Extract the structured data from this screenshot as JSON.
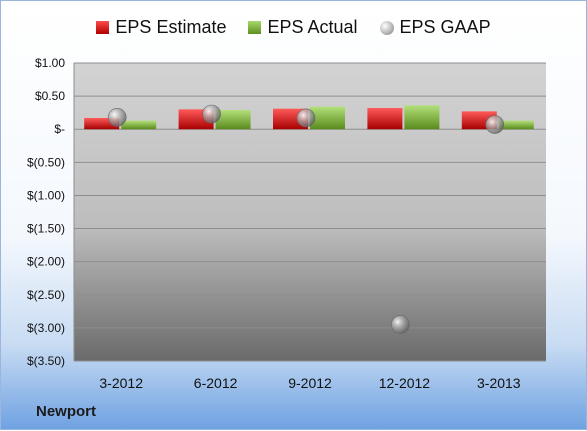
{
  "chart_data": {
    "type": "bar",
    "categories": [
      "3-2012",
      "6-2012",
      "9-2012",
      "12-2012",
      "3-2013"
    ],
    "series": [
      {
        "name": "EPS Estimate",
        "type": "bar",
        "color": "#d42020",
        "values": [
          0.17,
          0.3,
          0.31,
          0.32,
          0.27
        ]
      },
      {
        "name": "EPS Actual",
        "type": "bar",
        "color": "#7fb23a",
        "values": [
          0.13,
          0.29,
          0.34,
          0.36,
          0.13
        ]
      },
      {
        "name": "EPS GAAP",
        "type": "scatter",
        "color": "#a0a0a0",
        "values": [
          0.18,
          0.23,
          0.17,
          -2.95,
          0.07
        ]
      }
    ],
    "ylim": [
      -3.5,
      1.0
    ],
    "yticks": [
      1.0,
      0.5,
      0.0,
      -0.5,
      -1.0,
      -1.5,
      -2.0,
      -2.5,
      -3.0,
      -3.5
    ],
    "ytick_labels": [
      "$1.00",
      "$0.50",
      "$-",
      "$(0.50)",
      "$(1.00)",
      "$(1.50)",
      "$(2.00)",
      "$(2.50)",
      "$(3.00)",
      "$(3.50)"
    ],
    "grid": true,
    "legend_position": "top"
  },
  "legend": {
    "estimate": "EPS Estimate",
    "actual": "EPS Actual",
    "gaap": "EPS GAAP"
  },
  "footer": {
    "company": "Newport"
  }
}
